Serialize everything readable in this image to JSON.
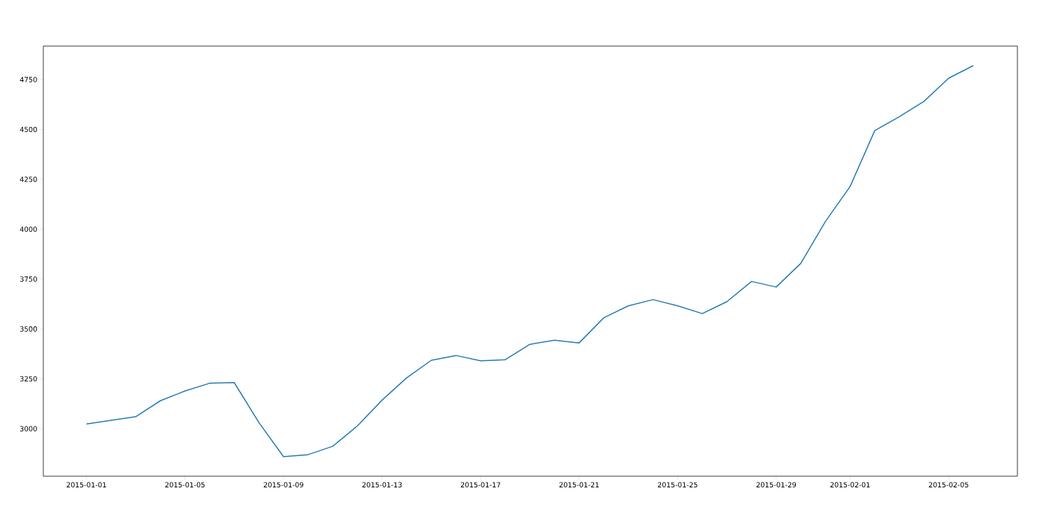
{
  "chart_data": {
    "type": "line",
    "x": [
      "2015-01-01",
      "2015-01-02",
      "2015-01-03",
      "2015-01-04",
      "2015-01-05",
      "2015-01-06",
      "2015-01-07",
      "2015-01-08",
      "2015-01-09",
      "2015-01-10",
      "2015-01-11",
      "2015-01-12",
      "2015-01-13",
      "2015-01-14",
      "2015-01-15",
      "2015-01-16",
      "2015-01-17",
      "2015-01-18",
      "2015-01-19",
      "2015-01-20",
      "2015-01-21",
      "2015-01-22",
      "2015-01-23",
      "2015-01-24",
      "2015-01-25",
      "2015-01-26",
      "2015-01-27",
      "2015-01-28",
      "2015-01-29",
      "2015-01-30",
      "2015-01-31",
      "2015-02-01",
      "2015-02-02",
      "2015-02-03",
      "2015-02-04",
      "2015-02-05",
      "2015-02-06"
    ],
    "values": [
      3024,
      3042,
      3060,
      3140,
      3189,
      3228,
      3231,
      3031,
      2860,
      2870,
      2912,
      3014,
      3143,
      3255,
      3343,
      3367,
      3340,
      3346,
      3423,
      3444,
      3430,
      3556,
      3616,
      3647,
      3616,
      3577,
      3637,
      3738,
      3710,
      3829,
      4039,
      4214,
      4494,
      4564,
      4641,
      4757,
      4820
    ],
    "color": "#1f77b4",
    "xlim": [
      "2014-12-30T06:00",
      "2015-02-07T19:00"
    ],
    "ylim": [
      2762,
      4918
    ],
    "xticks": [
      "2015-01-01",
      "2015-01-05",
      "2015-01-09",
      "2015-01-13",
      "2015-01-17",
      "2015-01-21",
      "2015-01-25",
      "2015-01-29",
      "2015-02-01",
      "2015-02-05"
    ],
    "yticks": [
      3000,
      3250,
      3500,
      3750,
      4000,
      4250,
      4500,
      4750
    ]
  }
}
